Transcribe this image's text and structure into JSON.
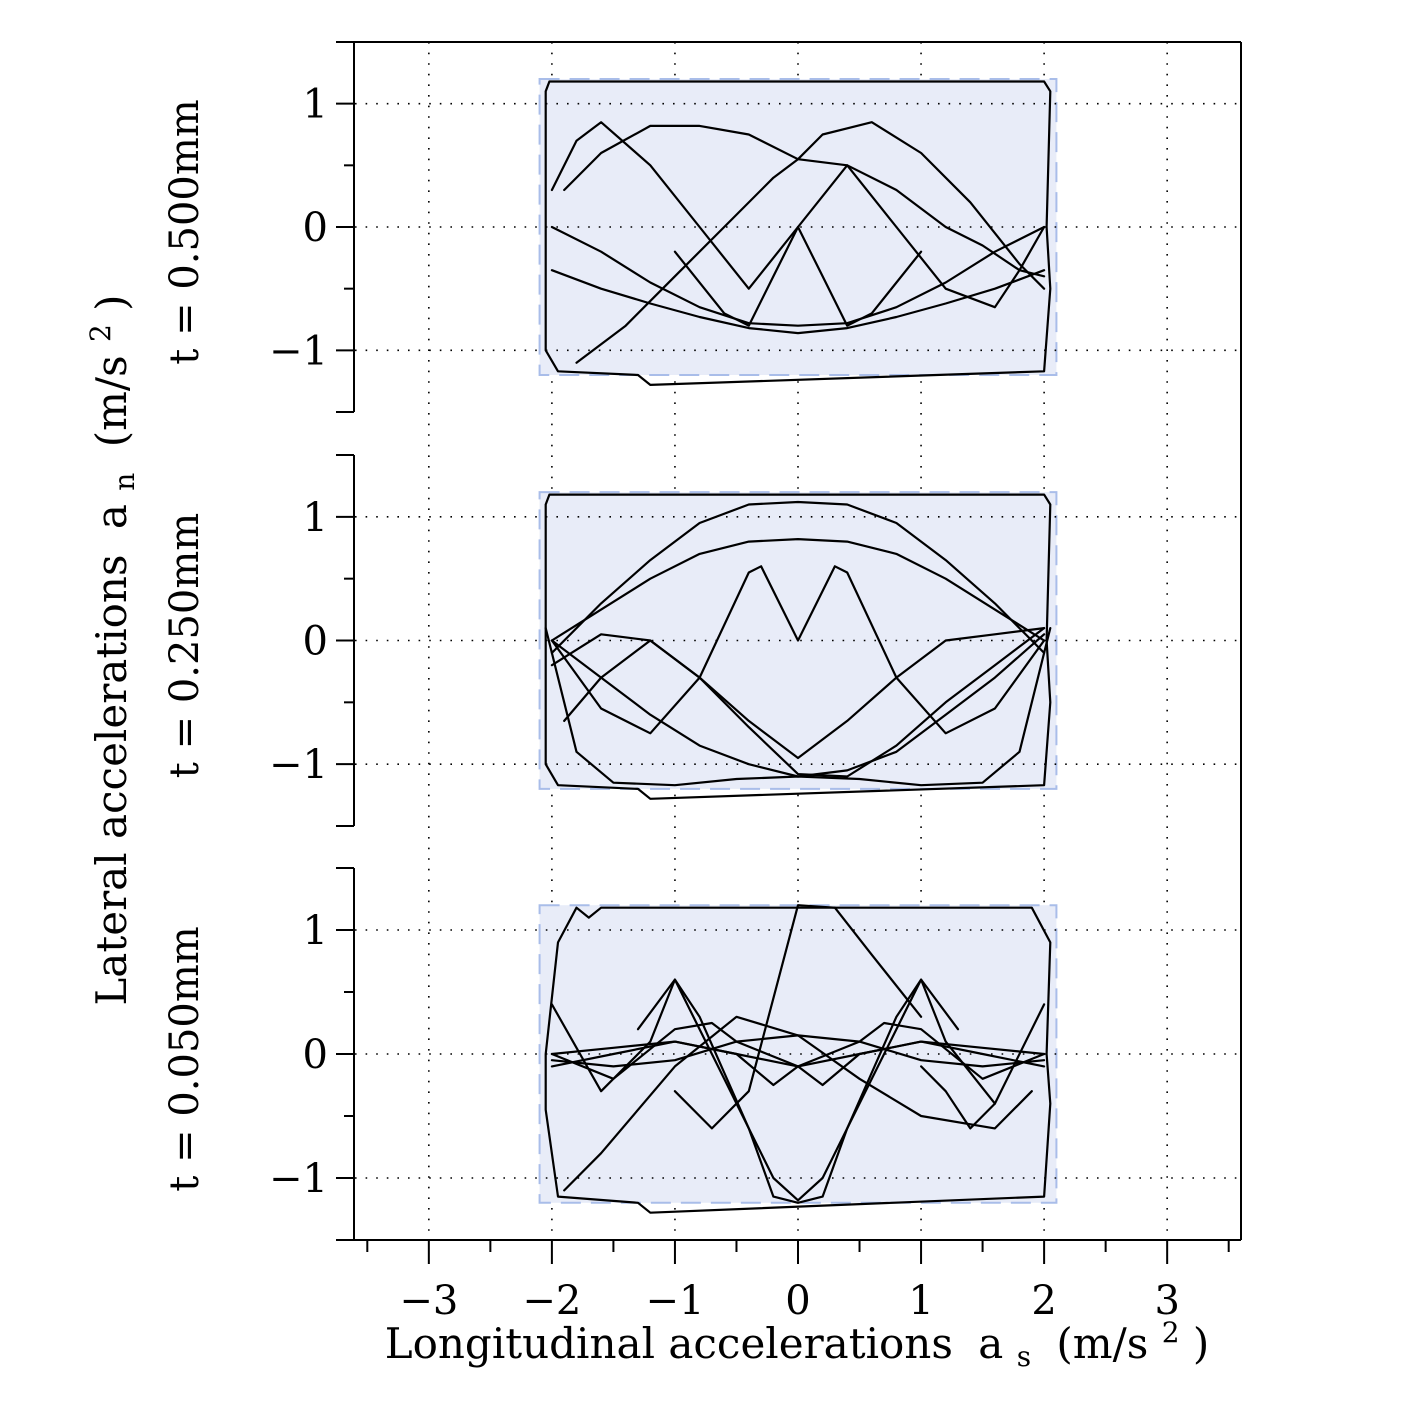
{
  "chart_data": {
    "type": "line",
    "xlabel": "Longitudinal accelerations",
    "xlabel_symbol": "a",
    "xlabel_sub": "s",
    "xlabel_unit_prefix": "(m/s",
    "xlabel_unit_sup": "2",
    "xlabel_unit_suffix": ")",
    "ylabel": "Lateral accelerations",
    "ylabel_symbol": "a",
    "ylabel_sub": "n",
    "ylabel_unit_prefix": "(m/s",
    "ylabel_unit_sup": "2",
    "ylabel_unit_suffix": ")",
    "xlim": [
      -3.6,
      3.6
    ],
    "xticks": [
      -3,
      -2,
      -1,
      0,
      1,
      2,
      3
    ],
    "xtick_labels": [
      "−3",
      "−2",
      "−1",
      "0",
      "1",
      "2",
      "3"
    ],
    "grid": true,
    "panels": [
      {
        "row_label": "t = 0.500mm",
        "ylim": [
          -1.5,
          1.5
        ],
        "yticks": [
          -1,
          0,
          1
        ],
        "ytick_labels": [
          "−1",
          "0",
          "1"
        ],
        "limit_box": {
          "x": [
            -2.1,
            2.1
          ],
          "y": [
            -1.2,
            1.2
          ]
        },
        "series": [
          {
            "x": [
              -2.05,
              -2.02,
              2.0,
              2.05,
              2.02,
              2.05,
              2.0,
              -1.2,
              -1.3,
              -1.95,
              -2.05,
              -2.05
            ],
            "y": [
              1.1,
              1.18,
              1.18,
              1.1,
              0.0,
              -0.5,
              -1.17,
              -1.28,
              -1.2,
              -1.17,
              -1.0,
              1.1
            ]
          },
          {
            "x": [
              -2.0,
              -1.8,
              -1.6,
              -1.2,
              -0.8,
              -0.4,
              0.0,
              0.4,
              0.8,
              1.2,
              1.6,
              1.8,
              2.0
            ],
            "y": [
              0.3,
              0.7,
              0.85,
              0.5,
              0.0,
              -0.5,
              0.0,
              0.5,
              0.0,
              -0.5,
              -0.65,
              -0.35,
              0.0
            ]
          },
          {
            "x": [
              -1.9,
              -1.6,
              -1.2,
              -0.8,
              -0.4,
              0.0,
              0.4,
              0.8,
              1.2,
              1.5,
              1.8,
              2.0
            ],
            "y": [
              0.3,
              0.6,
              0.82,
              0.82,
              0.75,
              0.55,
              0.5,
              0.3,
              0.0,
              -0.15,
              -0.35,
              -0.4
            ]
          },
          {
            "x": [
              -2.0,
              -1.6,
              -1.2,
              -0.8,
              -0.4,
              0.0,
              0.4,
              0.8,
              1.2,
              1.6,
              2.0
            ],
            "y": [
              0.0,
              -0.2,
              -0.45,
              -0.65,
              -0.78,
              -0.8,
              -0.78,
              -0.65,
              -0.45,
              -0.2,
              0.0
            ]
          },
          {
            "x": [
              -2.0,
              -1.6,
              -1.2,
              -0.8,
              -0.4,
              0.0,
              0.4,
              0.8,
              1.2,
              1.6,
              2.0
            ],
            "y": [
              -0.35,
              -0.5,
              -0.62,
              -0.73,
              -0.82,
              -0.86,
              -0.82,
              -0.73,
              -0.62,
              -0.5,
              -0.35
            ]
          },
          {
            "x": [
              -1.8,
              -1.4,
              -1.0,
              -0.6,
              -0.2,
              0.0,
              0.2,
              0.6,
              1.0,
              1.4,
              1.8,
              2.0
            ],
            "y": [
              -1.1,
              -0.8,
              -0.4,
              0.0,
              0.4,
              0.55,
              0.75,
              0.85,
              0.6,
              0.2,
              -0.3,
              -0.5
            ]
          },
          {
            "x": [
              -1.0,
              -0.6,
              -0.4,
              -0.2,
              0.0,
              0.2,
              0.4,
              0.6,
              1.0
            ],
            "y": [
              -0.2,
              -0.7,
              -0.8,
              -0.4,
              0.0,
              -0.4,
              -0.8,
              -0.7,
              -0.2
            ]
          }
        ]
      },
      {
        "row_label": "t = 0.250mm",
        "ylim": [
          -1.5,
          1.5
        ],
        "yticks": [
          -1,
          0,
          1
        ],
        "ytick_labels": [
          "−1",
          "0",
          "1"
        ],
        "limit_box": {
          "x": [
            -2.1,
            2.1
          ],
          "y": [
            -1.2,
            1.2
          ]
        },
        "series": [
          {
            "x": [
              -2.05,
              -2.02,
              2.0,
              2.05,
              2.02,
              2.05,
              2.0,
              -1.2,
              -1.3,
              -1.95,
              -2.05,
              -2.05
            ],
            "y": [
              1.1,
              1.18,
              1.18,
              1.1,
              0.0,
              -0.5,
              -1.17,
              -1.28,
              -1.2,
              -1.17,
              -1.0,
              1.1
            ]
          },
          {
            "x": [
              -2.0,
              -1.6,
              -1.2,
              -0.8,
              -0.4,
              0.0,
              0.4,
              0.8,
              1.2,
              1.6,
              2.0
            ],
            "y": [
              -0.1,
              0.3,
              0.65,
              0.95,
              1.1,
              1.12,
              1.1,
              0.95,
              0.65,
              0.3,
              -0.1
            ]
          },
          {
            "x": [
              -2.0,
              -1.6,
              -1.2,
              -0.8,
              -0.4,
              0.0,
              0.4,
              0.8,
              1.2,
              1.6,
              2.0
            ],
            "y": [
              0.0,
              0.25,
              0.5,
              0.7,
              0.8,
              0.82,
              0.8,
              0.7,
              0.5,
              0.25,
              0.0
            ]
          },
          {
            "x": [
              -2.0,
              -1.6,
              -1.2,
              -0.8,
              -0.4,
              -0.3,
              0.0,
              0.3,
              0.4,
              0.8,
              1.2,
              1.6,
              2.0
            ],
            "y": [
              0.0,
              -0.55,
              -0.75,
              -0.3,
              0.55,
              0.6,
              0.0,
              0.6,
              0.55,
              -0.3,
              -0.75,
              -0.55,
              0.0
            ]
          },
          {
            "x": [
              -2.0,
              -1.6,
              -1.2,
              -0.8,
              -0.4,
              0.0,
              0.4,
              0.8,
              1.2,
              1.6,
              2.0
            ],
            "y": [
              -0.2,
              0.05,
              0.0,
              -0.3,
              -0.7,
              -1.08,
              -1.1,
              -0.85,
              -0.5,
              -0.2,
              0.1
            ]
          },
          {
            "x": [
              -2.0,
              -1.6,
              -1.2,
              -0.8,
              -0.4,
              0.0,
              0.4,
              0.8,
              1.2,
              1.6,
              2.0
            ],
            "y": [
              0.0,
              -0.3,
              -0.6,
              -0.85,
              -1.0,
              -1.1,
              -1.05,
              -0.9,
              -0.6,
              -0.3,
              0.05
            ]
          },
          {
            "x": [
              -1.9,
              -1.6,
              -1.2,
              -0.8,
              -0.4,
              0.0,
              0.4,
              0.8,
              1.2,
              1.6,
              2.0
            ],
            "y": [
              -0.65,
              -0.3,
              0.0,
              -0.3,
              -0.65,
              -0.95,
              -0.65,
              -0.3,
              0.0,
              0.05,
              0.1
            ]
          },
          {
            "x": [
              -2.05,
              -1.8,
              -1.5,
              -1.0,
              -0.5,
              0.0,
              0.5,
              1.0,
              1.5,
              1.8,
              2.05
            ],
            "y": [
              0.1,
              -0.9,
              -1.15,
              -1.17,
              -1.12,
              -1.1,
              -1.12,
              -1.17,
              -1.15,
              -0.9,
              0.1
            ]
          }
        ]
      },
      {
        "row_label": "t = 0.050mm",
        "ylim": [
          -1.5,
          1.5
        ],
        "yticks": [
          -1,
          0,
          1
        ],
        "ytick_labels": [
          "−1",
          "0",
          "1"
        ],
        "limit_box": {
          "x": [
            -2.1,
            2.1
          ],
          "y": [
            -1.2,
            1.2
          ]
        },
        "series": [
          {
            "x": [
              -2.05,
              -1.95,
              -1.8,
              -1.7,
              -1.6,
              1.9,
              2.05,
              2.02,
              2.05,
              2.0,
              -1.2,
              -1.3,
              -1.95,
              -2.05,
              -2.05
            ],
            "y": [
              0.0,
              0.9,
              1.18,
              1.1,
              1.18,
              1.18,
              0.9,
              0.0,
              -0.4,
              -1.15,
              -1.28,
              -1.2,
              -1.15,
              -0.45,
              0.0
            ]
          },
          {
            "x": [
              -2.0,
              -1.6,
              -1.2,
              -1.0,
              -0.8,
              -0.4,
              -0.2,
              0.0,
              0.2,
              0.4,
              0.8,
              1.0,
              1.2,
              1.6,
              2.0
            ],
            "y": [
              0.4,
              -0.3,
              0.1,
              0.6,
              0.3,
              -0.6,
              -1.15,
              -1.2,
              -1.15,
              -0.6,
              0.3,
              0.6,
              0.1,
              -0.4,
              0.4
            ]
          },
          {
            "x": [
              -1.3,
              -1.0,
              -0.6,
              -0.2,
              0.0,
              0.2,
              0.6,
              1.0,
              1.3
            ],
            "y": [
              0.2,
              0.6,
              -0.2,
              -1.0,
              -1.18,
              -1.0,
              -0.2,
              0.6,
              0.2
            ]
          },
          {
            "x": [
              -2.0,
              -1.5,
              -1.0,
              -0.5,
              0.0,
              0.5,
              1.0,
              1.5,
              2.0
            ],
            "y": [
              0.0,
              0.05,
              0.1,
              0.0,
              -0.1,
              0.0,
              0.1,
              0.05,
              0.0
            ]
          },
          {
            "x": [
              -2.0,
              -1.5,
              -1.0,
              -0.5,
              0.0,
              0.5,
              1.0,
              1.5,
              2.0
            ],
            "y": [
              -0.05,
              -0.1,
              -0.05,
              0.1,
              0.15,
              0.1,
              -0.05,
              -0.1,
              -0.05
            ]
          },
          {
            "x": [
              -2.0,
              -1.5,
              -1.0,
              -0.7,
              -0.5,
              0.0,
              0.5,
              0.7,
              1.0,
              1.5,
              2.0
            ],
            "y": [
              0.0,
              -0.2,
              0.2,
              0.25,
              0.1,
              -0.1,
              0.1,
              0.25,
              0.2,
              -0.2,
              0.0
            ]
          },
          {
            "x": [
              -2.0,
              -1.5,
              -1.0,
              -0.5,
              -0.2,
              0.0,
              0.2,
              0.5,
              1.0,
              1.5,
              2.0
            ],
            "y": [
              -0.1,
              0.0,
              0.1,
              0.0,
              -0.25,
              -0.1,
              -0.25,
              0.0,
              0.1,
              0.0,
              -0.1
            ]
          },
          {
            "x": [
              -1.0,
              -0.7,
              -0.4,
              0.0,
              0.3,
              0.6,
              1.0
            ],
            "y": [
              -0.3,
              -0.6,
              -0.3,
              1.2,
              1.18,
              0.8,
              0.3
            ]
          },
          {
            "x": [
              1.0,
              1.2,
              1.4,
              1.6
            ],
            "y": [
              -0.1,
              -0.3,
              -0.6,
              -0.4
            ]
          },
          {
            "x": [
              -1.9,
              -1.6,
              -1.0,
              -0.5,
              0.0,
              0.5,
              1.0,
              1.6,
              1.9
            ],
            "y": [
              -1.1,
              -0.8,
              -0.1,
              0.3,
              0.15,
              -0.2,
              -0.5,
              -0.6,
              -0.3
            ]
          }
        ]
      }
    ]
  }
}
